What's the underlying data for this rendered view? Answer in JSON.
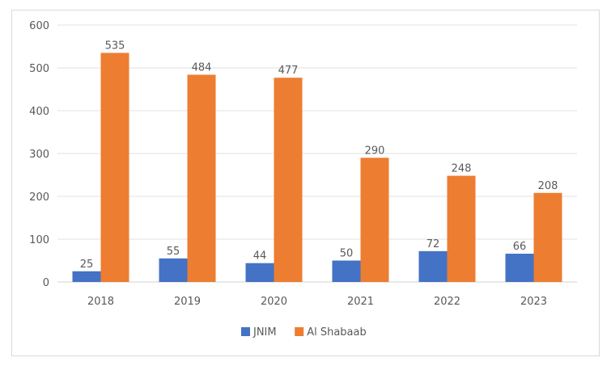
{
  "chart_data": {
    "type": "bar",
    "title": "",
    "xlabel": "",
    "ylabel": "",
    "categories": [
      "2018",
      "2019",
      "2020",
      "2021",
      "2022",
      "2023"
    ],
    "series": [
      {
        "name": "JNIM",
        "color": "#4472c4",
        "values": [
          25,
          55,
          44,
          50,
          72,
          66
        ]
      },
      {
        "name": "Al Shabaab",
        "color": "#ed7d31",
        "values": [
          535,
          484,
          477,
          290,
          248,
          208
        ]
      }
    ],
    "ylim": [
      0,
      600
    ],
    "yticks": [
      0,
      100,
      200,
      300,
      400,
      500,
      600
    ],
    "grid": true,
    "legend_position": "bottom"
  }
}
